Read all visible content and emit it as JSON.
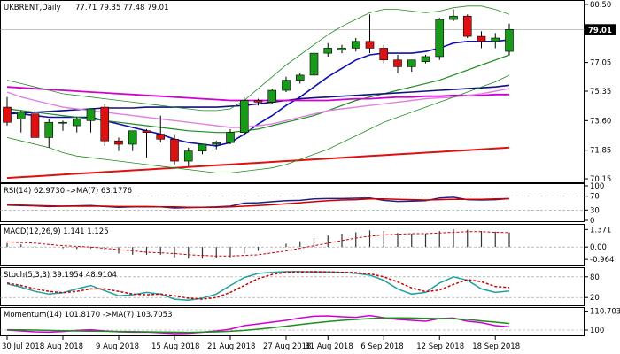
{
  "chart_data": [
    {
      "type": "candlestick",
      "title": "UKBRENT,Daily",
      "ohlc_header": "77.71 79.35 77.48 79.01",
      "last_price": "79.01",
      "ylim": [
        70.1,
        80.6
      ],
      "yticks": [
        "80.50",
        "79.01",
        "77.05",
        "75.35",
        "73.60",
        "71.85",
        "70.15"
      ],
      "candles": [
        {
          "o": 74.4,
          "h": 75.0,
          "l": 73.3,
          "c": 73.5
        },
        {
          "o": 73.7,
          "h": 74.2,
          "l": 72.9,
          "c": 74.1
        },
        {
          "o": 74.0,
          "h": 74.3,
          "l": 72.3,
          "c": 72.6
        },
        {
          "o": 72.6,
          "h": 73.7,
          "l": 72.0,
          "c": 73.5
        },
        {
          "o": 73.5,
          "h": 73.6,
          "l": 73.0,
          "c": 73.5
        },
        {
          "o": 73.3,
          "h": 73.8,
          "l": 72.9,
          "c": 73.7
        },
        {
          "o": 73.6,
          "h": 74.3,
          "l": 72.9,
          "c": 74.3
        },
        {
          "o": 74.4,
          "h": 74.6,
          "l": 72.1,
          "c": 72.4
        },
        {
          "o": 72.4,
          "h": 72.6,
          "l": 71.8,
          "c": 72.2
        },
        {
          "o": 72.2,
          "h": 73.0,
          "l": 71.8,
          "c": 73.0
        },
        {
          "o": 73.0,
          "h": 73.1,
          "l": 71.4,
          "c": 72.9
        },
        {
          "o": 72.8,
          "h": 73.9,
          "l": 72.3,
          "c": 72.5
        },
        {
          "o": 72.5,
          "h": 72.8,
          "l": 71.0,
          "c": 71.2
        },
        {
          "o": 71.2,
          "h": 72.0,
          "l": 70.9,
          "c": 71.8
        },
        {
          "o": 71.8,
          "h": 72.2,
          "l": 71.6,
          "c": 72.2
        },
        {
          "o": 72.2,
          "h": 72.4,
          "l": 71.9,
          "c": 72.3
        },
        {
          "o": 72.3,
          "h": 73.1,
          "l": 72.2,
          "c": 72.9
        },
        {
          "o": 72.9,
          "h": 75.0,
          "l": 72.7,
          "c": 74.8
        },
        {
          "o": 74.8,
          "h": 74.9,
          "l": 74.5,
          "c": 74.7
        },
        {
          "o": 74.7,
          "h": 75.5,
          "l": 74.6,
          "c": 75.4
        },
        {
          "o": 75.4,
          "h": 76.2,
          "l": 75.3,
          "c": 76.0
        },
        {
          "o": 76.0,
          "h": 76.4,
          "l": 75.8,
          "c": 76.3
        },
        {
          "o": 76.3,
          "h": 77.8,
          "l": 76.1,
          "c": 77.6
        },
        {
          "o": 77.6,
          "h": 78.2,
          "l": 77.4,
          "c": 77.9
        },
        {
          "o": 77.8,
          "h": 78.1,
          "l": 77.6,
          "c": 77.9
        },
        {
          "o": 77.9,
          "h": 78.5,
          "l": 77.7,
          "c": 78.3
        },
        {
          "o": 78.3,
          "h": 79.9,
          "l": 77.6,
          "c": 77.9
        },
        {
          "o": 77.9,
          "h": 78.1,
          "l": 77.0,
          "c": 77.2
        },
        {
          "o": 77.2,
          "h": 77.5,
          "l": 76.4,
          "c": 76.8
        },
        {
          "o": 76.8,
          "h": 77.2,
          "l": 76.5,
          "c": 77.2
        },
        {
          "o": 77.1,
          "h": 77.5,
          "l": 77.0,
          "c": 77.4
        },
        {
          "o": 77.4,
          "h": 79.7,
          "l": 77.2,
          "c": 79.6
        },
        {
          "o": 79.6,
          "h": 80.2,
          "l": 79.5,
          "c": 79.8
        },
        {
          "o": 79.8,
          "h": 79.9,
          "l": 78.5,
          "c": 78.6
        },
        {
          "o": 78.6,
          "h": 78.9,
          "l": 77.9,
          "c": 78.3
        },
        {
          "o": 78.3,
          "h": 78.8,
          "l": 77.9,
          "c": 78.5
        },
        {
          "o": 77.71,
          "h": 79.35,
          "l": 77.48,
          "c": 79.01
        }
      ],
      "overlays": [
        {
          "color": "#1010b0",
          "width": 1.6,
          "values": [
            74.1,
            74.0,
            73.9,
            73.8,
            73.8,
            73.8,
            73.8,
            73.6,
            73.4,
            73.2,
            73.0,
            72.8,
            72.5,
            72.3,
            72.2,
            72.1,
            72.3,
            72.8,
            73.4,
            73.9,
            74.5,
            75.0,
            75.6,
            76.2,
            76.7,
            77.2,
            77.5,
            77.6,
            77.6,
            77.6,
            77.7,
            77.9,
            78.2,
            78.3,
            78.3,
            78.3,
            78.4
          ]
        },
        {
          "color": "#1f8c1f",
          "width": 1.2,
          "values": [
            74.3,
            74.2,
            74.1,
            74.0,
            73.9,
            73.8,
            73.7,
            73.6,
            73.5,
            73.4,
            73.3,
            73.2,
            73.1,
            73.0,
            72.95,
            72.9,
            72.9,
            73.0,
            73.1,
            73.3,
            73.5,
            73.7,
            73.9,
            74.2,
            74.5,
            74.8,
            75.0,
            75.2,
            75.4,
            75.6,
            75.8,
            76.0,
            76.3,
            76.6,
            76.9,
            77.2,
            77.5
          ]
        },
        {
          "color": "#101080",
          "width": 1.6,
          "values": [
            74.0,
            74.05,
            74.1,
            74.15,
            74.2,
            74.25,
            74.3,
            74.35,
            74.35,
            74.35,
            74.4,
            74.4,
            74.4,
            74.4,
            74.4,
            74.4,
            74.45,
            74.5,
            74.6,
            74.7,
            74.8,
            74.9,
            74.95,
            75.0,
            75.05,
            75.1,
            75.15,
            75.2,
            75.25,
            75.3,
            75.35,
            75.4,
            75.45,
            75.5,
            75.55,
            75.6,
            75.7
          ]
        },
        {
          "color": "#d000d0",
          "width": 1.8,
          "values": [
            75.6,
            75.55,
            75.5,
            75.45,
            75.4,
            75.35,
            75.3,
            75.25,
            75.2,
            75.15,
            75.1,
            75.05,
            75.0,
            74.95,
            74.9,
            74.85,
            74.8,
            74.8,
            74.8,
            74.8,
            74.8,
            74.8,
            74.8,
            74.8,
            74.85,
            74.9,
            74.9,
            74.95,
            75.0,
            75.0,
            75.05,
            75.05,
            75.1,
            75.1,
            75.1,
            75.15,
            75.15
          ]
        },
        {
          "color": "#e080e0",
          "width": 1.4,
          "values": [
            75.3,
            75.0,
            74.8,
            74.6,
            74.4,
            74.3,
            74.2,
            74.1,
            74.0,
            73.9,
            73.8,
            73.7,
            73.6,
            73.5,
            73.4,
            73.3,
            73.2,
            73.2,
            73.3,
            73.4,
            73.6,
            73.8,
            74.0,
            74.2,
            74.3,
            74.4,
            74.5,
            74.6,
            74.7,
            74.8,
            74.9,
            74.95,
            75.0,
            75.1,
            75.2,
            75.35,
            75.5
          ]
        },
        {
          "color": "#dd1111",
          "width": 2,
          "values": [
            70.2,
            70.25,
            70.3,
            70.35,
            70.4,
            70.45,
            70.5,
            70.55,
            70.6,
            70.65,
            70.7,
            70.75,
            70.8,
            70.85,
            70.9,
            70.95,
            71.0,
            71.05,
            71.1,
            71.15,
            71.2,
            71.25,
            71.3,
            71.35,
            71.4,
            71.45,
            71.5,
            71.55,
            71.6,
            71.65,
            71.7,
            71.75,
            71.8,
            71.85,
            71.9,
            71.95,
            72.0
          ]
        },
        {
          "color": "#1f8c1f",
          "width": 0.8,
          "values": [
            76.0,
            75.8,
            75.6,
            75.4,
            75.2,
            75.1,
            75.0,
            74.9,
            74.8,
            74.7,
            74.6,
            74.5,
            74.4,
            74.3,
            74.2,
            74.2,
            74.3,
            74.8,
            75.5,
            76.2,
            76.9,
            77.5,
            78.1,
            78.7,
            79.2,
            79.6,
            80.0,
            80.2,
            80.2,
            80.1,
            80.0,
            80.1,
            80.3,
            80.4,
            80.4,
            80.2,
            79.9
          ]
        },
        {
          "color": "#1f8c1f",
          "width": 0.8,
          "values": [
            72.6,
            72.4,
            72.2,
            72.0,
            71.7,
            71.5,
            71.4,
            71.3,
            71.2,
            71.1,
            71.0,
            70.9,
            70.8,
            70.7,
            70.6,
            70.5,
            70.5,
            70.6,
            70.7,
            70.8,
            71.0,
            71.3,
            71.6,
            71.9,
            72.3,
            72.7,
            73.1,
            73.5,
            73.8,
            74.1,
            74.4,
            74.7,
            75.0,
            75.3,
            75.6,
            75.9,
            76.3
          ]
        }
      ]
    },
    {
      "type": "line",
      "title": "RSI(14) 62.9730   ->MA(7) 63.1776",
      "ylim": [
        0,
        100
      ],
      "yticks": [
        "100",
        "70",
        "30",
        "0"
      ],
      "series": [
        {
          "color": "#202080",
          "values": [
            44,
            43,
            42,
            40,
            41,
            42,
            43,
            40,
            38,
            39,
            39,
            39,
            36,
            37,
            38,
            39,
            41,
            50,
            51,
            54,
            57,
            58,
            62,
            63,
            63,
            64,
            65,
            58,
            55,
            56,
            57,
            65,
            67,
            60,
            59,
            60,
            63
          ]
        },
        {
          "color": "#cc0000",
          "values": [
            45,
            44,
            43,
            42,
            41,
            41,
            41,
            41,
            40,
            40,
            40,
            39,
            39,
            38,
            38,
            38,
            39,
            41,
            43,
            45,
            48,
            51,
            54,
            57,
            59,
            60,
            62,
            62,
            61,
            60,
            59,
            60,
            61,
            61,
            61,
            62,
            63
          ]
        }
      ]
    },
    {
      "type": "bar",
      "title": "MACD(12,26,9) 1.141 1.125",
      "ylim": [
        -1.3,
        1.6
      ],
      "yticks": [
        "1.371",
        "0.00",
        "-0.964"
      ],
      "values": [
        0.3,
        0.2,
        0.1,
        0.0,
        -0.1,
        -0.15,
        -0.1,
        -0.3,
        -0.5,
        -0.6,
        -0.6,
        -0.6,
        -0.8,
        -0.9,
        -0.9,
        -0.85,
        -0.8,
        -0.5,
        -0.3,
        0.0,
        0.25,
        0.45,
        0.7,
        0.9,
        1.05,
        1.15,
        1.3,
        1.25,
        1.1,
        1.05,
        1.05,
        1.25,
        1.4,
        1.35,
        1.25,
        1.2,
        1.141
      ],
      "signal": [
        0.4,
        0.35,
        0.3,
        0.2,
        0.1,
        0.05,
        0.0,
        -0.1,
        -0.2,
        -0.3,
        -0.4,
        -0.45,
        -0.5,
        -0.6,
        -0.65,
        -0.7,
        -0.7,
        -0.65,
        -0.6,
        -0.45,
        -0.3,
        -0.1,
        0.1,
        0.3,
        0.5,
        0.7,
        0.85,
        0.95,
        1.0,
        1.05,
        1.05,
        1.1,
        1.15,
        1.2,
        1.2,
        1.15,
        1.125
      ]
    },
    {
      "type": "line",
      "title": "Stoch(5,3,3) 39.1954 48.9104",
      "ylim": [
        0,
        100
      ],
      "yticks": [
        "80",
        "20"
      ],
      "series": [
        {
          "color": "#20a0a0",
          "values": [
            60,
            50,
            38,
            30,
            34,
            45,
            55,
            40,
            25,
            28,
            35,
            30,
            15,
            12,
            18,
            30,
            55,
            78,
            90,
            93,
            95,
            95,
            94,
            94,
            93,
            90,
            85,
            70,
            45,
            30,
            35,
            62,
            80,
            70,
            45,
            35,
            39
          ]
        },
        {
          "color": "#cc0000",
          "values": [
            62,
            55,
            45,
            38,
            34,
            38,
            45,
            45,
            38,
            30,
            28,
            30,
            25,
            18,
            15,
            20,
            35,
            55,
            75,
            87,
            93,
            94,
            95,
            94,
            93,
            92,
            89,
            80,
            65,
            48,
            37,
            42,
            58,
            72,
            66,
            52,
            48.9
          ]
        }
      ]
    },
    {
      "type": "line",
      "title": "Momentum(14) 101.8170  ->MA(7) 103.7053",
      "ylim": [
        97.5,
        111.5
      ],
      "yticks": [
        "110.7032",
        "100"
      ],
      "series": [
        {
          "color": "#d000d0",
          "values": [
            100,
            99.5,
            99,
            98.8,
            99.2,
            99.8,
            100.2,
            99.5,
            99,
            98.8,
            98.9,
            98.5,
            98,
            98.2,
            98.8,
            99.5,
            100.5,
            102.5,
            103.5,
            104.5,
            105.5,
            106.8,
            107.8,
            108,
            107.5,
            107.2,
            108.2,
            107,
            106,
            105.5,
            105,
            106.5,
            106.8,
            105,
            104.2,
            102.5,
            101.8
          ]
        },
        {
          "color": "#1f8c1f",
          "values": [
            100.2,
            100.1,
            100,
            99.8,
            99.6,
            99.5,
            99.4,
            99.3,
            99.2,
            99.1,
            99,
            98.9,
            98.8,
            98.7,
            98.8,
            99,
            99.3,
            99.8,
            100.5,
            101.3,
            102.2,
            103.1,
            104,
            104.8,
            105.5,
            106,
            106.5,
            106.8,
            106.9,
            106.8,
            106.6,
            106.5,
            106.4,
            106,
            105.2,
            104.5,
            103.7
          ]
        }
      ]
    }
  ],
  "xaxis_labels": [
    "30 Jul 2018",
    "3 Aug 2018",
    "9 Aug 2018",
    "15 Aug 2018",
    "21 Aug 2018",
    "27 Aug 2018",
    "31 Aug 2018",
    "6 Sep 2018",
    "12 Sep 2018",
    "18 Sep 2018"
  ],
  "colors": {
    "up": "#1a9a1a",
    "down": "#dd1111",
    "grid": "#bbbbbb",
    "price_marker_bg": "#000000"
  }
}
